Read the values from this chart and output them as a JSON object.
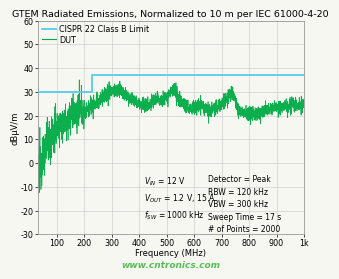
{
  "title": "GTEM Radiated Emissions, Normalized to 10 m per IEC 61000-4-20",
  "xlabel": "Frequency (MHz)",
  "ylabel": "dBµV/m",
  "xlim": [
    30,
    1000
  ],
  "ylim": [
    -30,
    60
  ],
  "yticks": [
    -30,
    -20,
    -10,
    0,
    10,
    20,
    30,
    40,
    50,
    60
  ],
  "xticks": [
    100,
    200,
    300,
    400,
    500,
    600,
    700,
    800,
    900,
    1000
  ],
  "xticklabels": [
    "100",
    "200",
    "300",
    "400",
    "500",
    "600",
    "700",
    "800",
    "900",
    "1k"
  ],
  "cispr_color": "#55ccee",
  "dut_color": "#00aa44",
  "bg_color": "#f7f7f2",
  "grid_color": "#d0d0d0",
  "title_fontsize": 6.8,
  "axis_fontsize": 6.0,
  "tick_fontsize": 5.8,
  "legend_fontsize": 5.8,
  "watermark": "www.cntronics.com",
  "watermark_color": "#22aa22"
}
